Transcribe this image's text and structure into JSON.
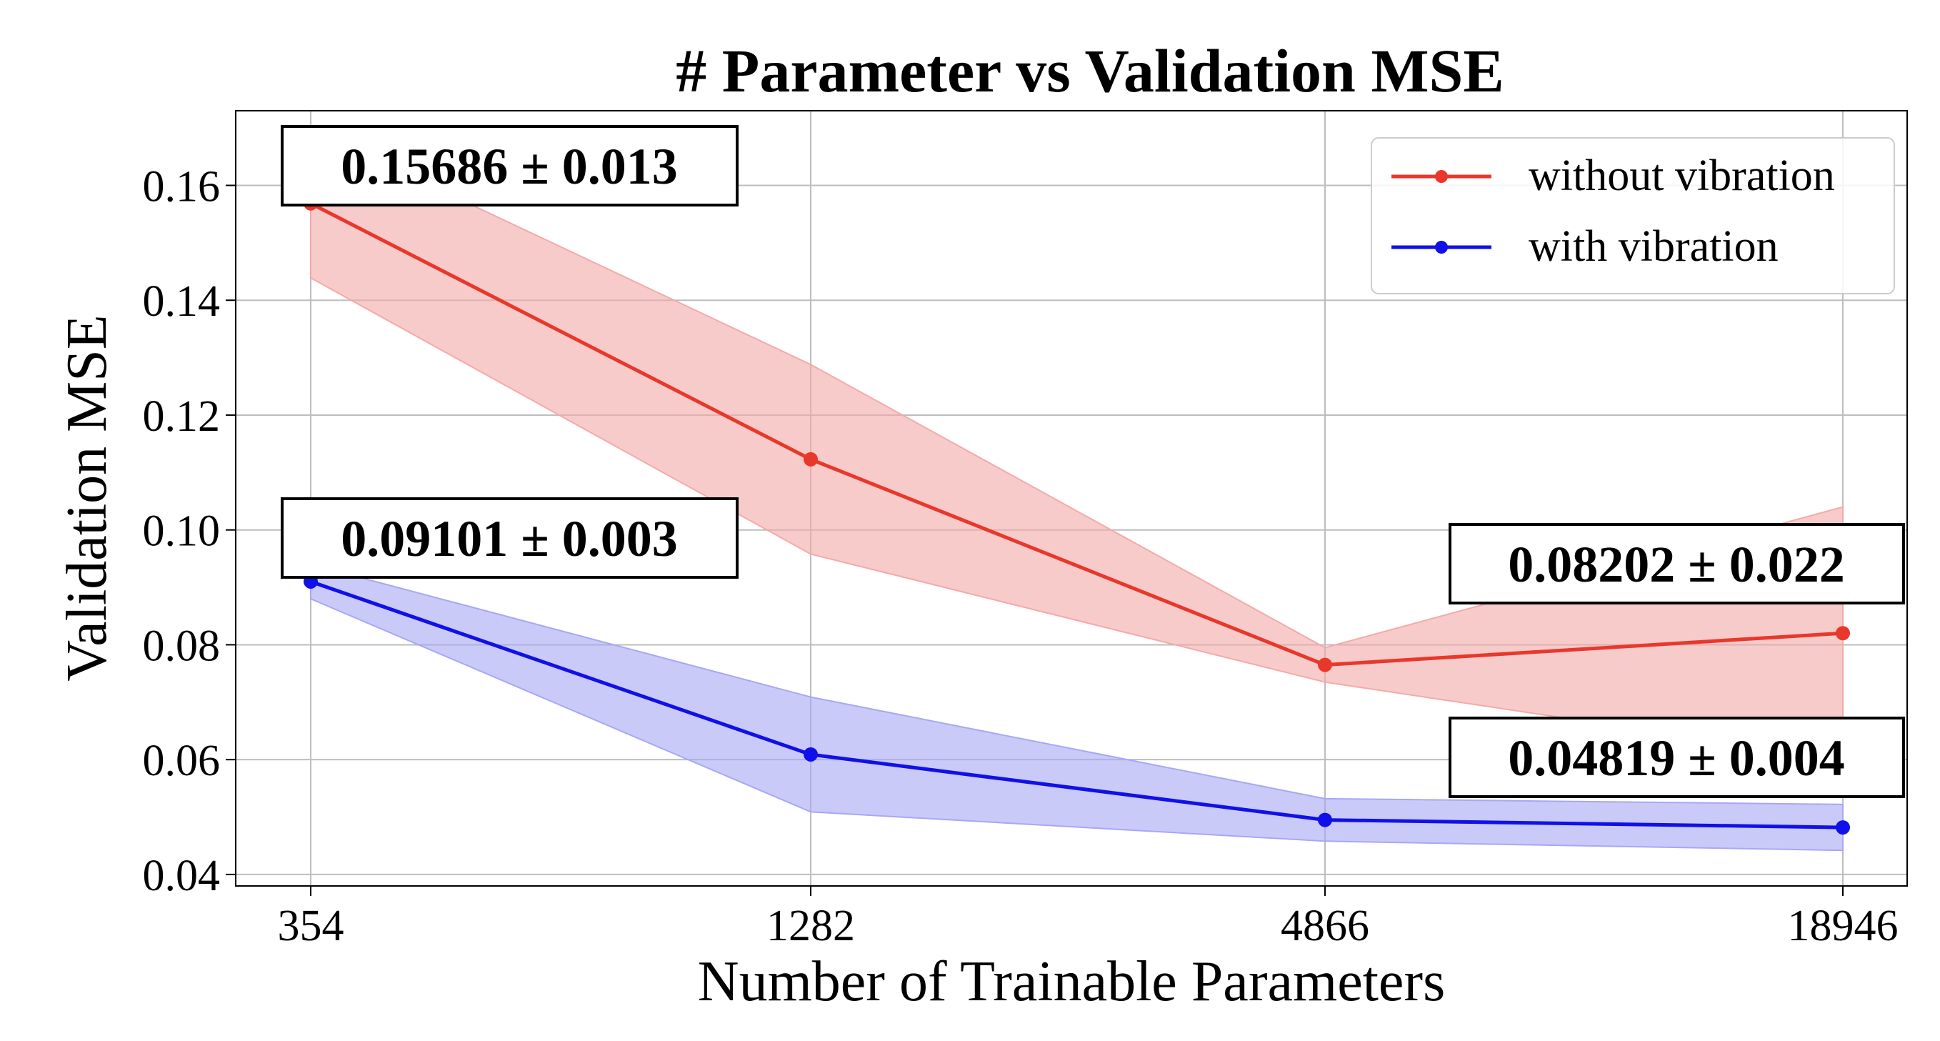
{
  "chart_data": {
    "type": "line",
    "title": "# Parameter vs Validation MSE",
    "xlabel": "Number of Trainable Parameters",
    "ylabel": "Validation MSE",
    "categories": [
      "354",
      "1282",
      "4866",
      "18946"
    ],
    "ylim": [
      0.038,
      0.173
    ],
    "yticks": [
      0.04,
      0.06,
      0.08,
      0.1,
      0.12,
      0.14,
      0.16
    ],
    "ytick_labels": [
      "0.04",
      "0.06",
      "0.08",
      "0.10",
      "0.12",
      "0.14",
      "0.16"
    ],
    "grid": true,
    "legend_position": "top-right",
    "series": [
      {
        "name": "without vibration",
        "color": "#e8382b",
        "band_color": "#f4a9a9",
        "values": [
          0.15686,
          0.1123,
          0.0765,
          0.08202
        ],
        "lower": [
          0.1439,
          0.0958,
          0.0735,
          0.06
        ],
        "upper": [
          0.1698,
          0.1288,
          0.0795,
          0.104
        ]
      },
      {
        "name": "with vibration",
        "color": "#1010e8",
        "band_color": "#a7a7f5",
        "values": [
          0.09101,
          0.0609,
          0.0495,
          0.04819
        ],
        "lower": [
          0.088,
          0.0509,
          0.0458,
          0.0442
        ],
        "upper": [
          0.094,
          0.0709,
          0.0532,
          0.0522
        ]
      }
    ],
    "annotations": [
      {
        "text": "0.15686 ± 0.013",
        "series": 0,
        "point": 0
      },
      {
        "text": "0.09101 ± 0.003",
        "series": 1,
        "point": 0
      },
      {
        "text": "0.08202 ± 0.022",
        "series": 0,
        "point": 3
      },
      {
        "text": "0.04819 ± 0.004",
        "series": 1,
        "point": 3
      }
    ]
  }
}
